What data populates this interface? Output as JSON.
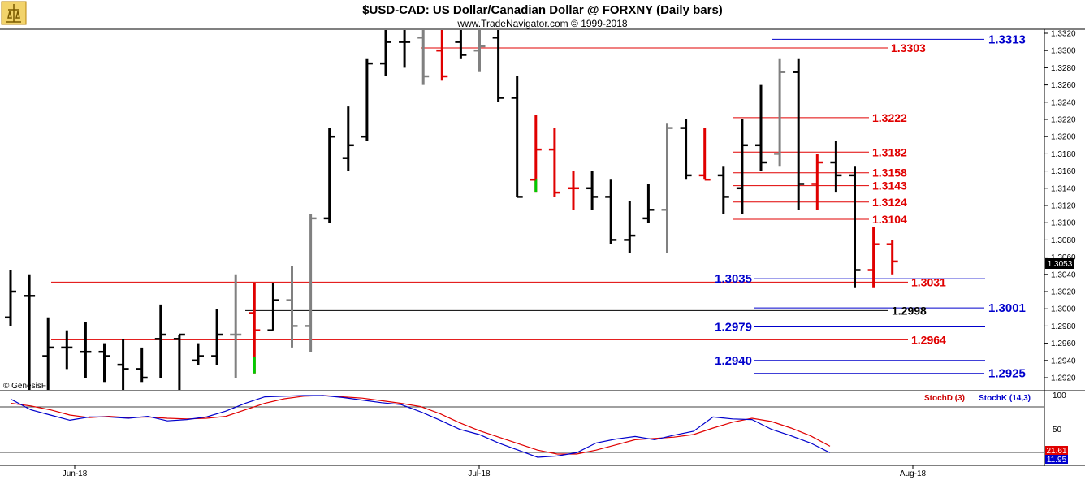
{
  "header": {
    "title": "$USD-CAD:  US Dollar/Canadian Dollar @ FORXNY  (Daily bars)",
    "subtitle": "www.TradeNavigator.com © 1999-2018",
    "logo_icon": "trade-navigator-logo-icon"
  },
  "watermark": "© GenesisFT",
  "colors": {
    "up_bar": "#000000",
    "down_bar": "#e00000",
    "neutral_bar": "#808080",
    "green_tick": "#00cc00",
    "red_level": "#e00000",
    "blue_level": "#0000cc",
    "stoch_d": "#e00000",
    "stoch_k": "#0000cc"
  },
  "chart_data": [
    {
      "type": "ohlc",
      "name": "price",
      "ylim": [
        1.2905,
        1.3325
      ],
      "yticks": [
        "1.3320",
        "1.3300",
        "1.3280",
        "1.3260",
        "1.3240",
        "1.3220",
        "1.3200",
        "1.3180",
        "1.3160",
        "1.3140",
        "1.3120",
        "1.3100",
        "1.3080",
        "1.3060",
        "1.3040",
        "1.3020",
        "1.3000",
        "1.2980",
        "1.2960",
        "1.2940",
        "1.2920"
      ],
      "last_price": "1.3053",
      "bars": [
        {
          "o": 1.299,
          "h": 1.3045,
          "l": 1.298,
          "c": 1.302,
          "color": "black"
        },
        {
          "o": 1.3015,
          "h": 1.304,
          "l": 1.2885,
          "c": 1.3015,
          "color": "black"
        },
        {
          "o": 1.2945,
          "h": 1.299,
          "l": 1.288,
          "c": 1.2955,
          "color": "black"
        },
        {
          "o": 1.2955,
          "h": 1.2975,
          "l": 1.293,
          "c": 1.2955,
          "color": "black"
        },
        {
          "o": 1.295,
          "h": 1.2985,
          "l": 1.292,
          "c": 1.295,
          "color": "black"
        },
        {
          "o": 1.295,
          "h": 1.296,
          "l": 1.2915,
          "c": 1.2945,
          "color": "black"
        },
        {
          "o": 1.2935,
          "h": 1.2965,
          "l": 1.2905,
          "c": 1.293,
          "color": "black"
        },
        {
          "o": 1.293,
          "h": 1.2955,
          "l": 1.2915,
          "c": 1.292,
          "color": "black"
        },
        {
          "o": 1.2965,
          "h": 1.3005,
          "l": 1.292,
          "c": 1.297,
          "color": "black"
        },
        {
          "o": 1.2965,
          "h": 1.297,
          "l": 1.2905,
          "c": 1.297,
          "color": "black"
        },
        {
          "o": 1.294,
          "h": 1.296,
          "l": 1.2935,
          "c": 1.2945,
          "color": "black"
        },
        {
          "o": 1.2945,
          "h": 1.3,
          "l": 1.2935,
          "c": 1.297,
          "color": "black"
        },
        {
          "o": 1.297,
          "h": 1.304,
          "l": 1.292,
          "c": 1.297,
          "color": "gray"
        },
        {
          "o": 1.2995,
          "h": 1.303,
          "l": 1.2925,
          "c": 1.2975,
          "color": "red",
          "green_low": true
        },
        {
          "o": 1.2975,
          "h": 1.303,
          "l": 1.2975,
          "c": 1.301,
          "color": "black"
        },
        {
          "o": 1.301,
          "h": 1.305,
          "l": 1.2955,
          "c": 1.298,
          "color": "gray"
        },
        {
          "o": 1.298,
          "h": 1.311,
          "l": 1.295,
          "c": 1.3105,
          "color": "gray"
        },
        {
          "o": 1.3105,
          "h": 1.321,
          "l": 1.31,
          "c": 1.32,
          "color": "black"
        },
        {
          "o": 1.3175,
          "h": 1.3235,
          "l": 1.316,
          "c": 1.319,
          "color": "black"
        },
        {
          "o": 1.32,
          "h": 1.329,
          "l": 1.3195,
          "c": 1.3285,
          "color": "black"
        },
        {
          "o": 1.3285,
          "h": 1.3325,
          "l": 1.327,
          "c": 1.331,
          "color": "black"
        },
        {
          "o": 1.331,
          "h": 1.3325,
          "l": 1.328,
          "c": 1.331,
          "color": "black"
        },
        {
          "o": 1.3315,
          "h": 1.3325,
          "l": 1.326,
          "c": 1.327,
          "color": "gray"
        },
        {
          "o": 1.33,
          "h": 1.3325,
          "l": 1.3265,
          "c": 1.327,
          "color": "red"
        },
        {
          "o": 1.331,
          "h": 1.3325,
          "l": 1.329,
          "c": 1.3295,
          "color": "black"
        },
        {
          "o": 1.33,
          "h": 1.3325,
          "l": 1.3275,
          "c": 1.3305,
          "color": "gray"
        },
        {
          "o": 1.3315,
          "h": 1.3325,
          "l": 1.324,
          "c": 1.3245,
          "color": "black"
        },
        {
          "o": 1.3245,
          "h": 1.327,
          "l": 1.313,
          "c": 1.313,
          "color": "black"
        },
        {
          "o": 1.315,
          "h": 1.3225,
          "l": 1.3135,
          "c": 1.3185,
          "color": "red",
          "green_low": true
        },
        {
          "o": 1.3185,
          "h": 1.321,
          "l": 1.313,
          "c": 1.3135,
          "color": "red"
        },
        {
          "o": 1.314,
          "h": 1.316,
          "l": 1.3115,
          "c": 1.314,
          "color": "red"
        },
        {
          "o": 1.314,
          "h": 1.316,
          "l": 1.3115,
          "c": 1.313,
          "color": "black"
        },
        {
          "o": 1.313,
          "h": 1.315,
          "l": 1.3075,
          "c": 1.308,
          "color": "black"
        },
        {
          "o": 1.308,
          "h": 1.3125,
          "l": 1.3065,
          "c": 1.3085,
          "color": "black"
        },
        {
          "o": 1.3105,
          "h": 1.3145,
          "l": 1.31,
          "c": 1.3115,
          "color": "black"
        },
        {
          "o": 1.3115,
          "h": 1.3215,
          "l": 1.3065,
          "c": 1.321,
          "color": "gray"
        },
        {
          "o": 1.321,
          "h": 1.322,
          "l": 1.315,
          "c": 1.3155,
          "color": "black"
        },
        {
          "o": 1.3155,
          "h": 1.321,
          "l": 1.315,
          "c": 1.315,
          "color": "red"
        },
        {
          "o": 1.3155,
          "h": 1.3165,
          "l": 1.311,
          "c": 1.313,
          "color": "black"
        },
        {
          "o": 1.314,
          "h": 1.322,
          "l": 1.311,
          "c": 1.319,
          "color": "black"
        },
        {
          "o": 1.319,
          "h": 1.326,
          "l": 1.316,
          "c": 1.317,
          "color": "black"
        },
        {
          "o": 1.318,
          "h": 1.329,
          "l": 1.3165,
          "c": 1.3275,
          "color": "gray"
        },
        {
          "o": 1.3275,
          "h": 1.329,
          "l": 1.3115,
          "c": 1.3145,
          "color": "black"
        },
        {
          "o": 1.3145,
          "h": 1.318,
          "l": 1.3115,
          "c": 1.317,
          "color": "red"
        },
        {
          "o": 1.317,
          "h": 1.3195,
          "l": 1.3135,
          "c": 1.3155,
          "color": "black"
        },
        {
          "o": 1.3155,
          "h": 1.3165,
          "l": 1.3025,
          "c": 1.3045,
          "color": "black"
        },
        {
          "o": 1.3045,
          "h": 1.3095,
          "l": 1.3025,
          "c": 1.3075,
          "color": "red"
        },
        {
          "o": 1.3075,
          "h": 1.308,
          "l": 1.304,
          "c": 1.3055,
          "color": "red"
        }
      ]
    },
    {
      "type": "levels",
      "name": "support-resistance",
      "red": [
        "1.3303",
        "1.3222",
        "1.3182",
        "1.3158",
        "1.3143",
        "1.3124",
        "1.3104",
        "1.3031",
        "1.2964"
      ],
      "blue": [
        "1.3313",
        "1.3035",
        "1.3001",
        "1.2979",
        "1.2940",
        "1.2925"
      ],
      "black": [
        "1.2998"
      ]
    },
    {
      "type": "line",
      "name": "stochastic",
      "ylim": [
        0,
        100
      ],
      "yticks": [
        "100",
        "50"
      ],
      "legend": [
        "StochD (3)",
        "StochK (14,3)"
      ],
      "stochD_last": "21.61",
      "stochK_last": "11.95",
      "stochK": [
        94,
        78,
        70,
        62,
        67,
        67,
        65,
        68,
        61,
        63,
        67,
        76,
        88,
        98,
        99,
        100,
        100,
        97,
        93,
        89,
        86,
        75,
        62,
        48,
        40,
        27,
        16,
        5,
        7,
        12,
        27,
        33,
        37,
        32,
        39,
        45,
        67,
        64,
        63,
        48,
        38,
        27,
        12
      ],
      "stochD": [
        88,
        84,
        78,
        70,
        66,
        68,
        66,
        67,
        65,
        64,
        65,
        68,
        78,
        88,
        95,
        99,
        100,
        98,
        96,
        92,
        88,
        83,
        72,
        58,
        46,
        36,
        26,
        16,
        10,
        10,
        16,
        24,
        32,
        34,
        36,
        40,
        50,
        59,
        65,
        60,
        50,
        38,
        22
      ],
      "xticks": [
        "Jun-18",
        "Jul-18",
        "Aug-18"
      ]
    }
  ]
}
